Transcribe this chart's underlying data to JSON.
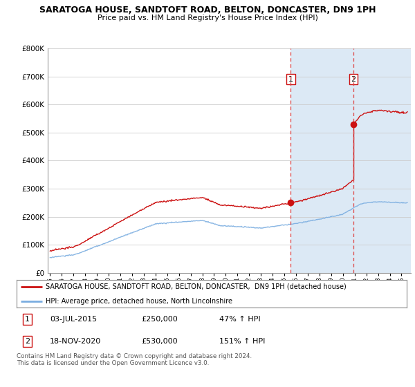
{
  "title": "SARATOGA HOUSE, SANDTOFT ROAD, BELTON, DONCASTER, DN9 1PH",
  "subtitle": "Price paid vs. HM Land Registry's House Price Index (HPI)",
  "legend_line1": "SARATOGA HOUSE, SANDTOFT ROAD, BELTON, DONCASTER,  DN9 1PH (detached house)",
  "legend_line2": "HPI: Average price, detached house, North Lincolnshire",
  "transaction1_date": "03-JUL-2015",
  "transaction1_price": "£250,000",
  "transaction1_hpi": "47% ↑ HPI",
  "transaction2_date": "18-NOV-2020",
  "transaction2_price": "£530,000",
  "transaction2_hpi": "151% ↑ HPI",
  "footnote": "Contains HM Land Registry data © Crown copyright and database right 2024.\nThis data is licensed under the Open Government Licence v3.0.",
  "hpi_color": "#7aade0",
  "price_color": "#cc1111",
  "shading_color": "#dce9f5",
  "t1": 2015.55,
  "t2": 2020.9,
  "t1_price": 250000,
  "t2_price": 530000,
  "ylim": [
    0,
    800000
  ],
  "xlim_start": 1994.8,
  "xlim_end": 2025.8
}
